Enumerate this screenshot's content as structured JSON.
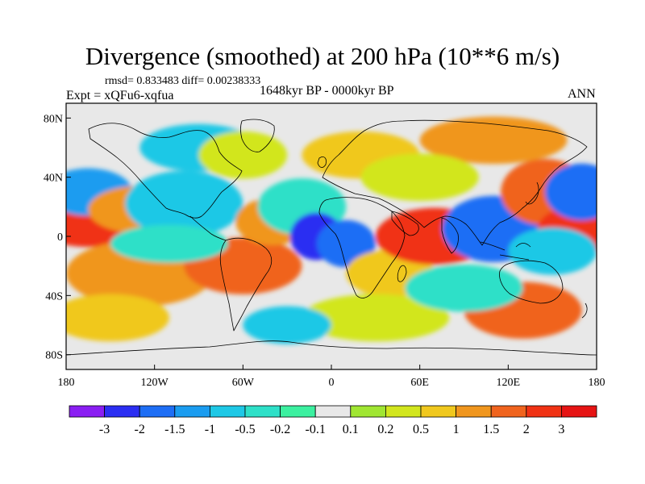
{
  "title": "Divergence (smoothed) at 200 hPa (10**6 m/s)",
  "stats": "rmsd= 0.833483 diff= 0.00238333",
  "experiment": "Expt = xQFu6-xqfua",
  "period": "1648kyr BP - 0000kyr BP",
  "season": "ANN",
  "axes": {
    "y_ticks": [
      "80N",
      "40N",
      "0",
      "40S",
      "80S"
    ],
    "x_ticks": [
      "180",
      "120W",
      "60W",
      "0",
      "60E",
      "120E",
      "180"
    ]
  },
  "colorbar": {
    "labels": [
      "-3",
      "-2",
      "-1.5",
      "-1",
      "-0.5",
      "-0.2",
      "-0.1",
      "0.1",
      "0.2",
      "0.5",
      "1",
      "1.5",
      "2",
      "3"
    ],
    "colors": [
      "#8a1ef2",
      "#2b2ef2",
      "#1e6ef5",
      "#1a9cf0",
      "#1ec8e6",
      "#2ee0c8",
      "#3cf0a0",
      "#e8e8e8",
      "#a0e632",
      "#d2e61e",
      "#f0c81e",
      "#f0961e",
      "#f0641e",
      "#f03214",
      "#e61414"
    ]
  },
  "palette": {
    "background": "#e8e8e8",
    "coast": "#000000"
  }
}
